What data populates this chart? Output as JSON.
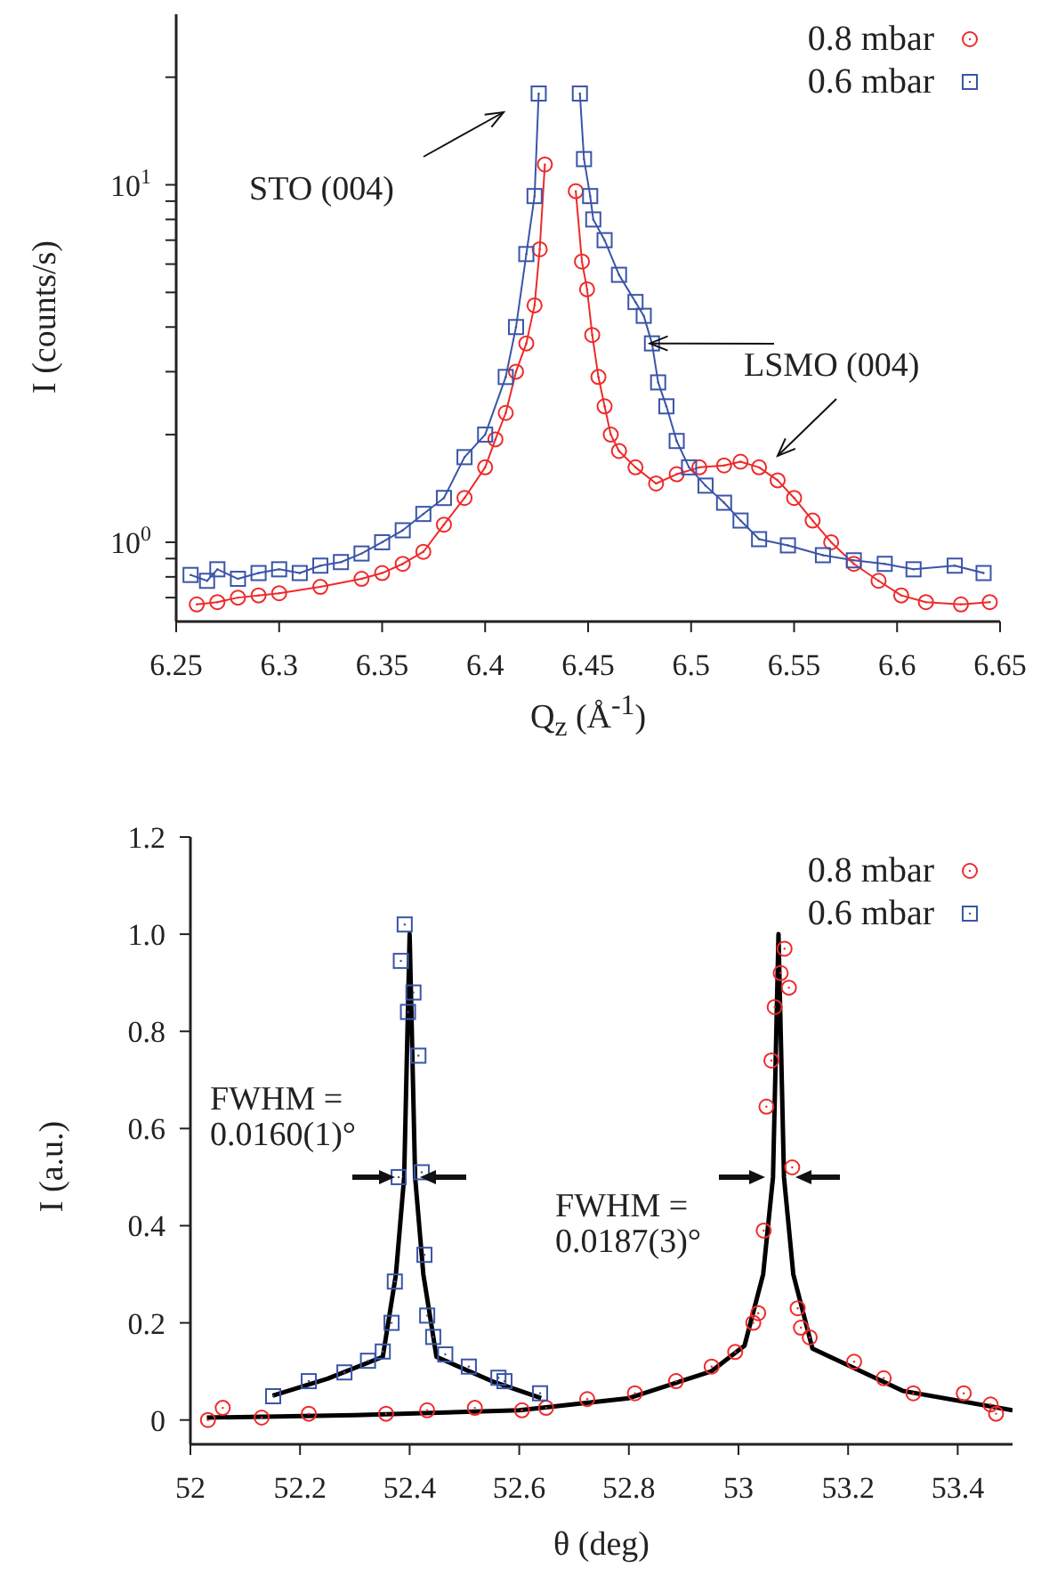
{
  "chart_data": [
    {
      "type": "line",
      "xlabel": "Q$_{z}$ (Å$^{-1}$)",
      "ylabel": "I (counts/s)",
      "log": "y",
      "xlim": [
        6.25,
        6.65
      ],
      "xticks": [
        6.25,
        6.3,
        6.35,
        6.4,
        6.45,
        6.5,
        6.55,
        6.6,
        6.65
      ],
      "ylim": [
        0.6,
        30
      ],
      "yticks": [
        {
          "value": 0.7,
          "label": null
        },
        {
          "value": 0.8,
          "label": null
        },
        {
          "value": 0.9,
          "label": null
        },
        {
          "value": 1,
          "label": "10$^{0}$"
        },
        {
          "value": 2,
          "label": null
        },
        {
          "value": 3,
          "label": null
        },
        {
          "value": 4,
          "label": null
        },
        {
          "value": 5,
          "label": null
        },
        {
          "value": 6,
          "label": null
        },
        {
          "value": 7,
          "label": null
        },
        {
          "value": 8,
          "label": null
        },
        {
          "value": 9,
          "label": null
        },
        {
          "value": 10,
          "label": "10$^{1}$"
        },
        {
          "value": 20,
          "label": null
        }
      ],
      "legend": "top right",
      "annotations": [
        "STO (004)",
        {
          "text": "LSMO (004)",
          "x": 6.48,
          "y": 3.6
        }
      ],
      "series": [
        {
          "name": "0.8 mbar",
          "marker": "circle",
          "color": "#ee2a2a",
          "x": [
            6.26,
            6.27,
            6.28,
            6.29,
            6.3,
            6.32,
            6.34,
            6.35,
            6.36,
            6.37,
            6.38,
            6.39,
            6.4,
            6.405,
            6.41,
            6.415,
            6.42,
            6.424,
            6.4265,
            6.429,
            6.436,
            6.444,
            6.447,
            6.4495,
            6.452,
            6.455,
            6.458,
            6.461,
            6.465,
            6.473,
            6.483,
            6.493,
            6.504,
            6.516,
            6.524,
            6.533,
            6.542,
            6.55,
            6.559,
            6.568,
            6.579,
            6.591,
            6.602,
            6.614,
            6.631,
            6.645
          ],
          "values": [
            0.67,
            0.68,
            0.7,
            0.71,
            0.72,
            0.75,
            0.79,
            0.82,
            0.87,
            0.94,
            1.12,
            1.33,
            1.62,
            1.94,
            2.3,
            3.0,
            3.6,
            4.6,
            6.6,
            11.4,
            null,
            9.6,
            6.1,
            5.1,
            3.8,
            2.9,
            2.4,
            2.0,
            1.8,
            1.62,
            1.46,
            1.55,
            1.62,
            1.64,
            1.68,
            1.62,
            1.49,
            1.33,
            1.15,
            1.0,
            0.87,
            0.78,
            0.71,
            0.68,
            0.67,
            0.68
          ]
        },
        {
          "name": "0.6 mbar",
          "marker": "square",
          "color": "#3a55a8",
          "x": [
            6.257,
            6.265,
            6.27,
            6.28,
            6.29,
            6.3,
            6.31,
            6.32,
            6.33,
            6.34,
            6.35,
            6.36,
            6.37,
            6.38,
            6.39,
            6.4,
            6.41,
            6.415,
            6.42,
            6.424,
            6.426,
            6.436,
            6.446,
            6.448,
            6.451,
            6.4525,
            6.458,
            6.465,
            6.473,
            6.477,
            6.481,
            6.484,
            6.488,
            6.493,
            6.499,
            6.507,
            6.516,
            6.524,
            6.533,
            6.547,
            6.564,
            6.579,
            6.594,
            6.608,
            6.628,
            6.642
          ],
          "values": [
            0.81,
            0.78,
            0.84,
            0.79,
            0.82,
            0.84,
            0.82,
            0.86,
            0.88,
            0.93,
            1.0,
            1.08,
            1.2,
            1.33,
            1.73,
            2.0,
            2.9,
            4.0,
            6.4,
            9.3,
            18,
            null,
            18,
            11.8,
            9.3,
            8.0,
            7.0,
            5.6,
            4.7,
            4.3,
            3.6,
            2.8,
            2.4,
            1.92,
            1.62,
            1.44,
            1.29,
            1.15,
            1.02,
            0.98,
            0.92,
            0.89,
            0.87,
            0.84,
            0.86,
            0.82
          ]
        }
      ]
    },
    {
      "type": "scatter",
      "xlabel": "θ (deg)",
      "ylabel": "I (a.u.)",
      "xlim": [
        52,
        53.5
      ],
      "xticks": [
        52,
        52.2,
        52.4,
        52.6,
        52.8,
        53,
        53.2,
        53.4
      ],
      "ylim": [
        -0.05,
        1.2
      ],
      "yticks": [
        0,
        0.2,
        0.4,
        0.6,
        0.8,
        {
          "value": 1,
          "label": "1.0"
        },
        1.2
      ],
      "legend": "top right",
      "annotations": [
        "FWHM =\n0.0160(1)°",
        "FWHM =\n0.0187(3)°"
      ],
      "series": [
        {
          "name": "0.8 mbar",
          "marker": "circle",
          "color": "#ee2a2a",
          "x": [
            52.032,
            52.059,
            52.13,
            52.216,
            52.357,
            52.432,
            52.519,
            52.605,
            52.649,
            52.724,
            52.811,
            52.886,
            52.951,
            52.994,
            53.027,
            53.036,
            53.046,
            53.051,
            53.06,
            53.066,
            53.077,
            53.084,
            53.092,
            53.098,
            53.108,
            53.114,
            53.13,
            53.211,
            53.265,
            53.319,
            53.411,
            53.46,
            53.47
          ],
          "values": [
            0.0,
            0.025,
            0.005,
            0.013,
            0.013,
            0.02,
            0.025,
            0.02,
            0.025,
            0.043,
            0.055,
            0.08,
            0.11,
            0.14,
            0.2,
            0.22,
            0.39,
            0.645,
            0.74,
            0.85,
            0.92,
            0.97,
            0.89,
            0.52,
            0.23,
            0.19,
            0.17,
            0.12,
            0.086,
            0.055,
            0.055,
            0.032,
            0.013
          ]
        },
        {
          "name": "0.6 mbar",
          "marker": "square",
          "color": "#3a55a8",
          "x": [
            52.151,
            52.216,
            52.281,
            52.324,
            52.351,
            52.367,
            52.373,
            52.38,
            52.384,
            52.391,
            52.397,
            52.407,
            52.416,
            52.422,
            52.427,
            52.432,
            52.443,
            52.465,
            52.508,
            52.562,
            52.573,
            52.638
          ],
          "values": [
            0.049,
            0.08,
            0.098,
            0.122,
            0.141,
            0.2,
            0.285,
            0.5,
            0.945,
            1.02,
            0.84,
            0.88,
            0.75,
            0.51,
            0.34,
            0.215,
            0.171,
            0.135,
            0.11,
            0.087,
            0.08,
            0.055
          ]
        },
        {
          "type": "line",
          "marker": "none",
          "color": "#000000",
          "x": [
            52.15,
            52.25,
            52.351,
            52.375,
            52.39,
            52.4,
            52.41,
            52.425,
            52.449,
            52.55,
            52.64
          ],
          "values": [
            0.05,
            0.085,
            0.13,
            0.3,
            0.5,
            1.0,
            0.5,
            0.3,
            0.13,
            0.08,
            0.045
          ]
        },
        {
          "type": "line",
          "marker": "none",
          "color": "#000000",
          "x": [
            52.03,
            52.3,
            52.6,
            52.8,
            52.95,
            53.011,
            53.045,
            53.063,
            53.073,
            53.083,
            53.1,
            53.135,
            53.3,
            53.5
          ],
          "values": [
            0.005,
            0.01,
            0.02,
            0.045,
            0.1,
            0.153,
            0.3,
            0.5,
            1.0,
            0.5,
            0.3,
            0.147,
            0.06,
            0.02
          ]
        }
      ]
    }
  ]
}
